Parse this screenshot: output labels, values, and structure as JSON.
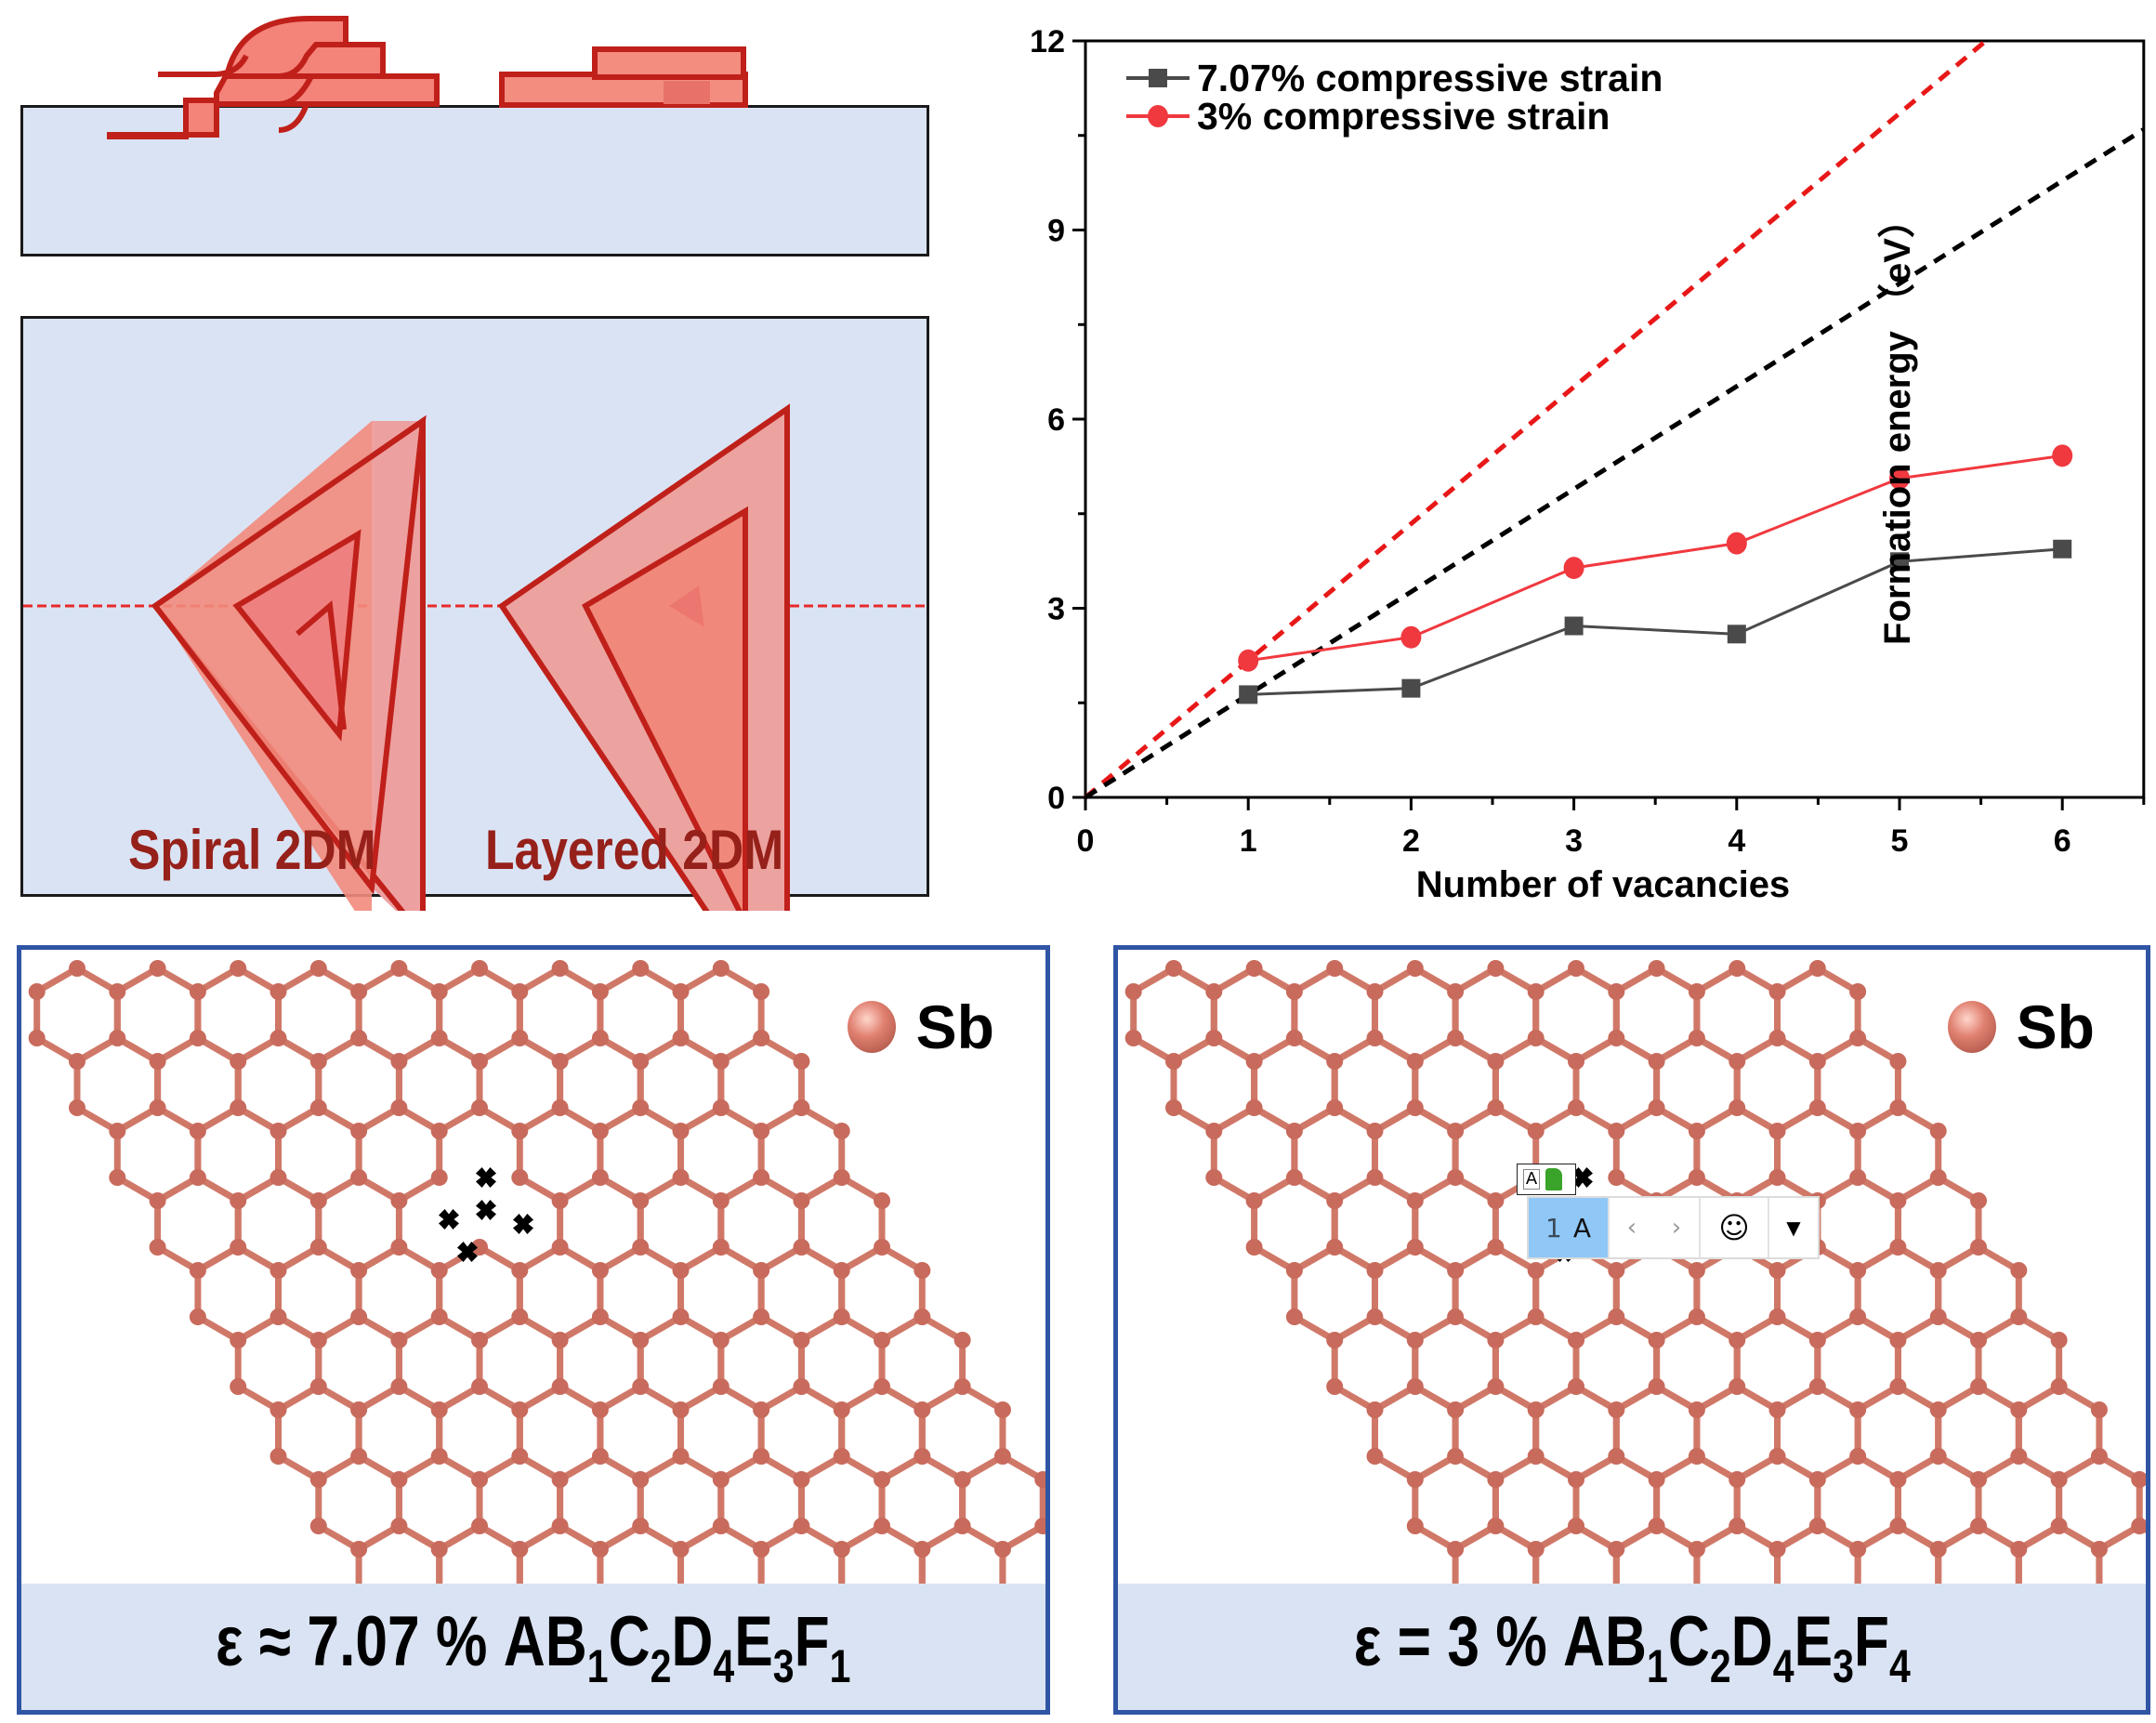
{
  "schematic": {
    "spiral_label": "Spiral  2DM",
    "layered_label": "Layered  2DM",
    "colors": {
      "substrate": "#dae3f3",
      "layer_fill": "#f08070",
      "layer_stroke": "#c0201a",
      "label": "#96201a"
    }
  },
  "chart_data": {
    "type": "line",
    "title": "",
    "xlabel": "Number of vacancies",
    "ylabel": "Formation energy （eV）",
    "xlim": [
      0,
      6.5
    ],
    "ylim": [
      0,
      12
    ],
    "x_ticks": [
      "0",
      "1",
      "2",
      "3",
      "4",
      "5",
      "6"
    ],
    "y_ticks": [
      "0",
      "3",
      "6",
      "9",
      "12"
    ],
    "legend_position": "top-left",
    "grid": false,
    "x": [
      1,
      2,
      3,
      4,
      5,
      6
    ],
    "series": [
      {
        "name": "7.07% compressive strain",
        "marker": "square",
        "color": "#4a4a4a",
        "values": [
          1.63,
          1.73,
          2.72,
          2.59,
          3.74,
          3.94
        ]
      },
      {
        "name": "3% compressive strain",
        "marker": "circle",
        "color": "#f0393f",
        "values": [
          2.17,
          2.54,
          3.64,
          4.03,
          5.06,
          5.42
        ]
      }
    ],
    "reference_lines": [
      {
        "name": "linear extrapolation (3%)",
        "style": "dashed",
        "color": "#e81818",
        "slope": 2.17
      },
      {
        "name": "linear extrapolation (7.07%)",
        "style": "dashed",
        "color": "#000000",
        "slope": 1.63
      }
    ]
  },
  "lattice_panels": [
    {
      "legend": "Sb",
      "caption_prefix": "ε ≈ 7.07 %  AB",
      "formula": [
        {
          "sub": "1",
          "el": "C"
        },
        {
          "sub": "2",
          "el": "D"
        },
        {
          "sub": "4",
          "el": "E"
        },
        {
          "sub": "3",
          "el": "F"
        },
        {
          "sub": "1",
          "el": ""
        }
      ]
    },
    {
      "legend": "Sb",
      "caption_prefix": "ε = 3 %  AB",
      "formula": [
        {
          "sub": "1",
          "el": "C"
        },
        {
          "sub": "2",
          "el": "D"
        },
        {
          "sub": "4",
          "el": "E"
        },
        {
          "sub": "3",
          "el": "F"
        },
        {
          "sub": "4",
          "el": ""
        }
      ]
    }
  ],
  "ime_toolbar": {
    "candidate_number": "1",
    "candidate_text": "A",
    "prev": "‹",
    "next": "›",
    "emoji": "☺",
    "more": "▼",
    "mini_mode": "A"
  }
}
